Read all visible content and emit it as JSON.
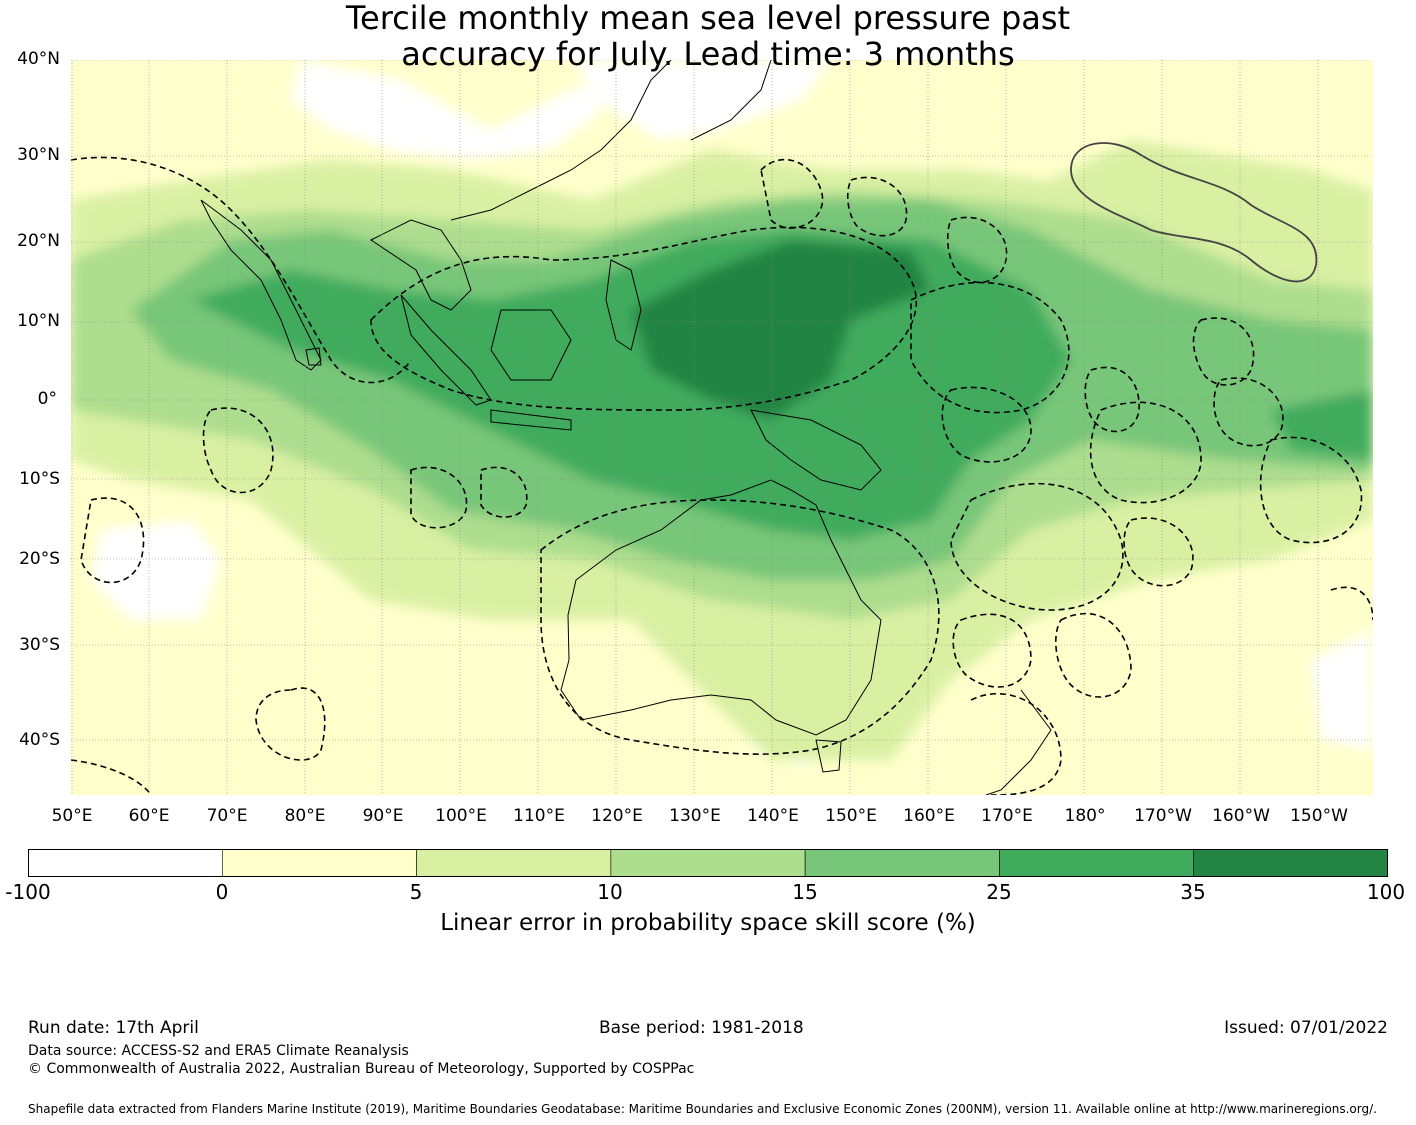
{
  "title": {
    "line1": "Tercile monthly mean sea level pressure past",
    "line2": "accuracy for July. Lead time: 3 months"
  },
  "map": {
    "lat_ticks": [
      "40°N",
      "30°N",
      "20°N",
      "10°N",
      "0°",
      "10°S",
      "20°S",
      "30°S",
      "40°S"
    ],
    "lon_ticks": [
      "50°E",
      "60°E",
      "70°E",
      "80°E",
      "90°E",
      "100°E",
      "110°E",
      "120°E",
      "130°E",
      "140°E",
      "150°E",
      "160°E",
      "170°E",
      "180°",
      "170°W",
      "160°W",
      "150°W"
    ]
  },
  "colorbar": {
    "boundaries": [
      "-100",
      "0",
      "5",
      "10",
      "15",
      "25",
      "35",
      "100"
    ],
    "colors": [
      "#ffffff",
      "#ffffcc",
      "#d9f0a3",
      "#addd8e",
      "#78c679",
      "#41ab5d",
      "#238443"
    ],
    "label": "Linear error in probability space skill score (%)"
  },
  "footer": {
    "run_date": "Run date: 17th April",
    "base_period": "Base period: 1981-2018",
    "issued": "Issued: 07/01/2022",
    "data_source": "Data source: ACCESS-S2 and ERA5 Climate Reanalysis",
    "copyright": "© Commonwealth of Australia 2022, Australian Bureau of Meteorology, Supported by COSPPac",
    "shapefile": "Shapefile data extracted from Flanders Marine Institute (2019), Maritime Boundaries Geodatabase: Maritime Boundaries and Exclusive Economic Zones (200NM), version 11. Available online at http://www.marineregions.org/."
  }
}
